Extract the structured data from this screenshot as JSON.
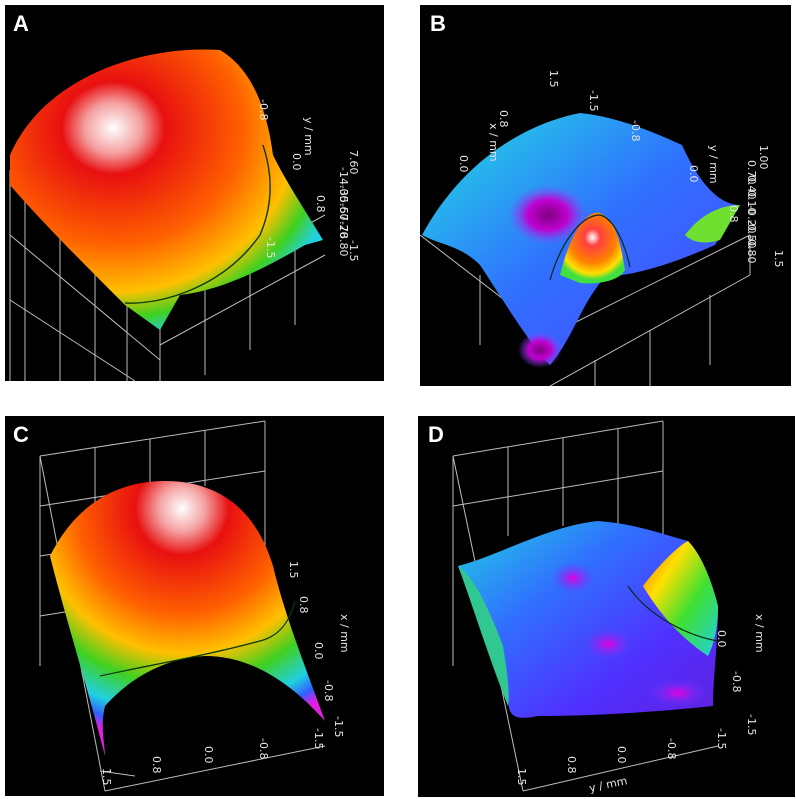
{
  "panels": {
    "a": {
      "letter": "A",
      "axis_label": "y / mm",
      "ticks": [
        "-1.5",
        "0.8",
        "0.0",
        "-0.8",
        "-1.5"
      ],
      "legend": [
        "7.60",
        "-14.00",
        "-35.60",
        "-57.20",
        "-78.80"
      ]
    },
    "b": {
      "letter": "B",
      "axis_label_x": "x / mm",
      "axis_label_y": "y / mm",
      "ticks_x": [
        "1.5",
        "0.8",
        "0.0",
        "-0.8",
        "-1.5"
      ],
      "ticks_y": [
        "0.0",
        "0.8",
        "1.5"
      ],
      "legend": [
        "1.00",
        "0.70",
        "0.40",
        "0.10",
        "-0.20",
        "-0.50",
        "-0.80"
      ]
    },
    "c": {
      "letter": "C",
      "axis_label": "x / mm",
      "ticks_right": [
        "1.5",
        "0.8",
        "0.0",
        "-0.8",
        "-1.5"
      ],
      "ticks_bottom": [
        "1.5",
        "0.8",
        "0.0",
        "-0.8",
        "-1.5"
      ]
    },
    "d": {
      "letter": "D",
      "axis_label_x": "x / mm",
      "axis_label_y": "y / mm",
      "ticks_right": [
        "0.0",
        "-0.8",
        "-1.5"
      ],
      "ticks_bottom": [
        "1.5",
        "0.8",
        "0.0",
        "-0.8",
        "-1.5"
      ]
    }
  }
}
